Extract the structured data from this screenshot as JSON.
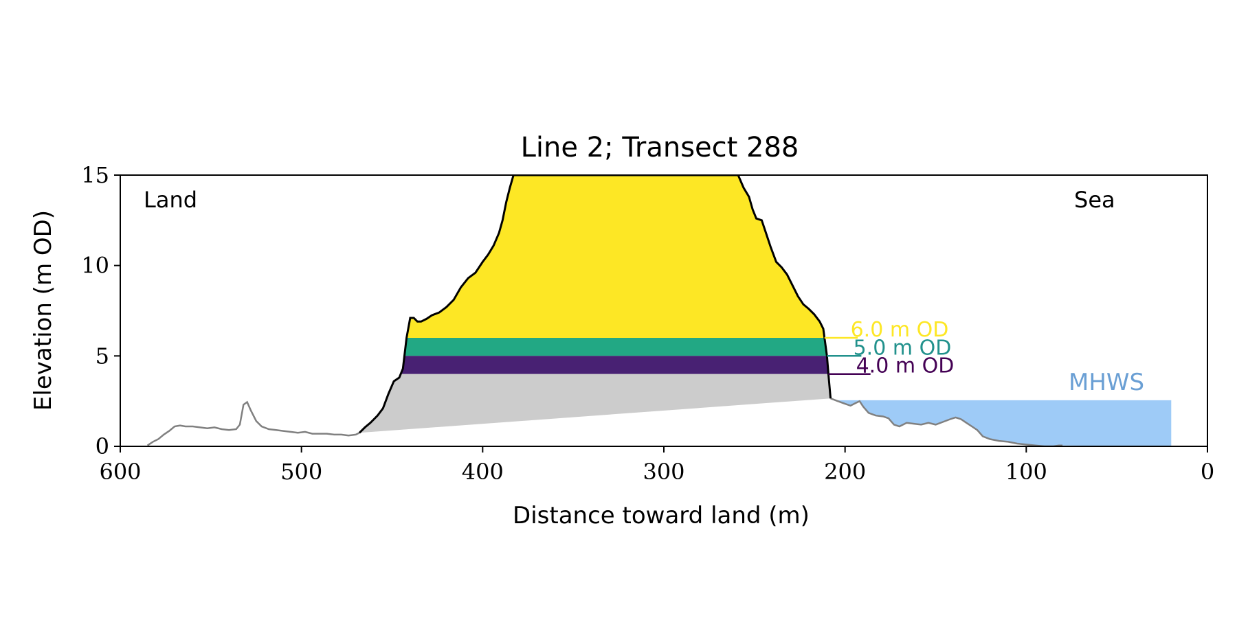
{
  "chart_data": {
    "type": "area",
    "title": "Line 2; Transect 288",
    "xlabel": "Distance toward land (m)",
    "ylabel": "Elevation (m OD)",
    "xlim": [
      600,
      0
    ],
    "ylim": [
      0,
      15
    ],
    "x_ticks": [
      600,
      500,
      400,
      300,
      200,
      100,
      0
    ],
    "y_ticks": [
      0,
      5,
      10,
      15
    ],
    "grid": false,
    "annotations": {
      "land": "Land",
      "sea": "Sea",
      "mhws": "MHWS"
    },
    "mhws": {
      "elevation": 2.55,
      "x_from": 205,
      "x_to": 20,
      "color": "#9ecbf7"
    },
    "levels": [
      {
        "label": "6.0 m OD",
        "elevation": 6.0,
        "color": "#fde725"
      },
      {
        "label": "5.0 m OD",
        "elevation": 5.0,
        "color": "#21918c"
      },
      {
        "label": "4.0 m OD",
        "elevation": 4.0,
        "color": "#440154"
      }
    ],
    "band_colors": [
      "#fde725",
      "#22a884",
      "#482173",
      "#cccccc"
    ],
    "endpoints": [
      {
        "x": 468,
        "y": 0.75
      },
      {
        "x": 208,
        "y": 2.65
      }
    ],
    "profile_line_color": "#000000",
    "ground_line_color": "#808080",
    "profile": [
      [
        468,
        0.75
      ],
      [
        465,
        1.05
      ],
      [
        462,
        1.3
      ],
      [
        458,
        1.7
      ],
      [
        455,
        2.1
      ],
      [
        452,
        2.9
      ],
      [
        449,
        3.6
      ],
      [
        446,
        3.8
      ],
      [
        444,
        4.3
      ],
      [
        442,
        6.0
      ],
      [
        440,
        7.1
      ],
      [
        438,
        7.1
      ],
      [
        436,
        6.9
      ],
      [
        434,
        6.9
      ],
      [
        431,
        7.05
      ],
      [
        428,
        7.25
      ],
      [
        424,
        7.4
      ],
      [
        420,
        7.7
      ],
      [
        416,
        8.1
      ],
      [
        412,
        8.8
      ],
      [
        408,
        9.3
      ],
      [
        404,
        9.6
      ],
      [
        400,
        10.2
      ],
      [
        397,
        10.6
      ],
      [
        394,
        11.1
      ],
      [
        391,
        11.8
      ],
      [
        389,
        12.5
      ],
      [
        387,
        13.5
      ],
      [
        385,
        14.3
      ],
      [
        383,
        15.0
      ],
      [
        259,
        15.0
      ],
      [
        256,
        14.3
      ],
      [
        253,
        13.8
      ],
      [
        251,
        13.1
      ],
      [
        249,
        12.6
      ],
      [
        246,
        12.5
      ],
      [
        244,
        11.9
      ],
      [
        241,
        11.0
      ],
      [
        238,
        10.2
      ],
      [
        235,
        9.9
      ],
      [
        232,
        9.5
      ],
      [
        229,
        8.9
      ],
      [
        226,
        8.3
      ],
      [
        223,
        7.85
      ],
      [
        220,
        7.6
      ],
      [
        217,
        7.3
      ],
      [
        214,
        6.9
      ],
      [
        212,
        6.5
      ],
      [
        210,
        5.0
      ],
      [
        209,
        3.8
      ],
      [
        208,
        2.65
      ]
    ],
    "ground_land": [
      [
        585,
        0.05
      ],
      [
        582,
        0.25
      ],
      [
        579,
        0.4
      ],
      [
        576,
        0.65
      ],
      [
        573,
        0.85
      ],
      [
        570,
        1.1
      ],
      [
        567,
        1.15
      ],
      [
        564,
        1.1
      ],
      [
        560,
        1.1
      ],
      [
        556,
        1.05
      ],
      [
        552,
        1.0
      ],
      [
        548,
        1.05
      ],
      [
        544,
        0.95
      ],
      [
        540,
        0.9
      ],
      [
        536,
        0.95
      ],
      [
        534,
        1.2
      ],
      [
        532,
        2.3
      ],
      [
        530,
        2.45
      ],
      [
        528,
        2.0
      ],
      [
        525,
        1.4
      ],
      [
        522,
        1.1
      ],
      [
        518,
        0.95
      ],
      [
        514,
        0.9
      ],
      [
        510,
        0.85
      ],
      [
        506,
        0.8
      ],
      [
        502,
        0.75
      ],
      [
        498,
        0.8
      ],
      [
        494,
        0.7
      ],
      [
        490,
        0.7
      ],
      [
        486,
        0.7
      ],
      [
        482,
        0.65
      ],
      [
        478,
        0.65
      ],
      [
        474,
        0.6
      ],
      [
        470,
        0.65
      ],
      [
        468,
        0.75
      ]
    ],
    "ground_sea": [
      [
        208,
        2.65
      ],
      [
        204,
        2.5
      ],
      [
        200,
        2.35
      ],
      [
        197,
        2.25
      ],
      [
        194,
        2.4
      ],
      [
        192,
        2.5
      ],
      [
        190,
        2.2
      ],
      [
        187,
        1.85
      ],
      [
        183,
        1.7
      ],
      [
        179,
        1.65
      ],
      [
        176,
        1.55
      ],
      [
        173,
        1.2
      ],
      [
        170,
        1.1
      ],
      [
        166,
        1.3
      ],
      [
        162,
        1.25
      ],
      [
        158,
        1.2
      ],
      [
        154,
        1.3
      ],
      [
        150,
        1.2
      ],
      [
        146,
        1.35
      ],
      [
        142,
        1.5
      ],
      [
        139,
        1.6
      ],
      [
        136,
        1.5
      ],
      [
        133,
        1.3
      ],
      [
        130,
        1.1
      ],
      [
        127,
        0.9
      ],
      [
        124,
        0.55
      ],
      [
        120,
        0.4
      ],
      [
        115,
        0.3
      ],
      [
        110,
        0.25
      ],
      [
        105,
        0.15
      ],
      [
        100,
        0.1
      ],
      [
        95,
        0.05
      ],
      [
        90,
        0.0
      ],
      [
        85,
        0.0
      ],
      [
        82,
        0.05
      ],
      [
        80,
        0.05
      ]
    ]
  }
}
